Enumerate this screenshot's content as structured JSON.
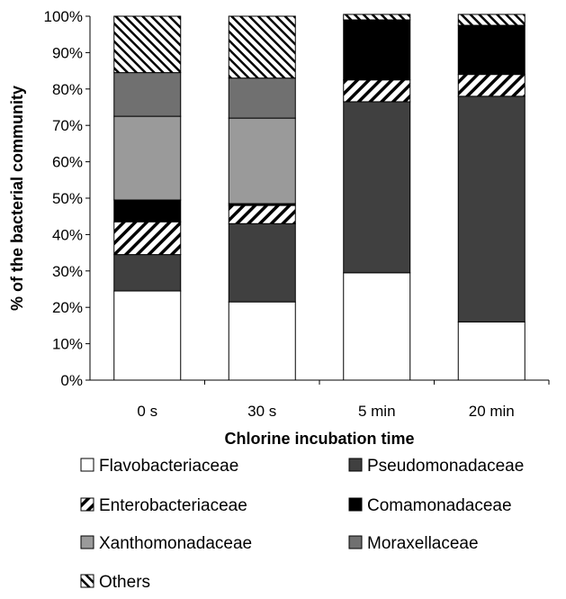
{
  "chart_data": {
    "type": "bar",
    "stacked": true,
    "categories": [
      "0 s",
      "30 s",
      "5 min",
      "20 min"
    ],
    "xlabel": "Chlorine incubation time",
    "ylabel": "% of the bacterial community",
    "ylim": [
      0,
      100
    ],
    "y_ticks": [
      "0%",
      "10%",
      "20%",
      "30%",
      "40%",
      "50%",
      "60%",
      "70%",
      "80%",
      "90%",
      "100%"
    ],
    "legend_position": "bottom",
    "series": [
      {
        "name": "Flavobacteriaceae",
        "values": [
          24.5,
          21.5,
          29.5,
          16.0
        ],
        "fill": "#ffffff",
        "pattern": "none"
      },
      {
        "name": "Pseudomonadaceae",
        "values": [
          10.0,
          21.5,
          47.0,
          62.0
        ],
        "fill": "#404040",
        "pattern": "none"
      },
      {
        "name": "Enterobacteriaceae",
        "values": [
          9.0,
          5.0,
          6.0,
          6.0
        ],
        "fill": "#ffffff",
        "pattern": "diagonal"
      },
      {
        "name": "Comamonadaceae",
        "values": [
          6.0,
          0.5,
          16.5,
          13.5
        ],
        "fill": "#000000",
        "pattern": "none"
      },
      {
        "name": "Xanthomonadaceae",
        "values": [
          23.0,
          23.5,
          0.0,
          0.0
        ],
        "fill": "#9a9a9a",
        "pattern": "none"
      },
      {
        "name": "Moraxellaceae",
        "values": [
          12.0,
          11.0,
          0.0,
          0.0
        ],
        "fill": "#707070",
        "pattern": "none"
      },
      {
        "name": "Others",
        "values": [
          15.5,
          17.0,
          1.5,
          3.0
        ],
        "fill": "#ffffff",
        "pattern": "diagonal-dense"
      }
    ]
  }
}
